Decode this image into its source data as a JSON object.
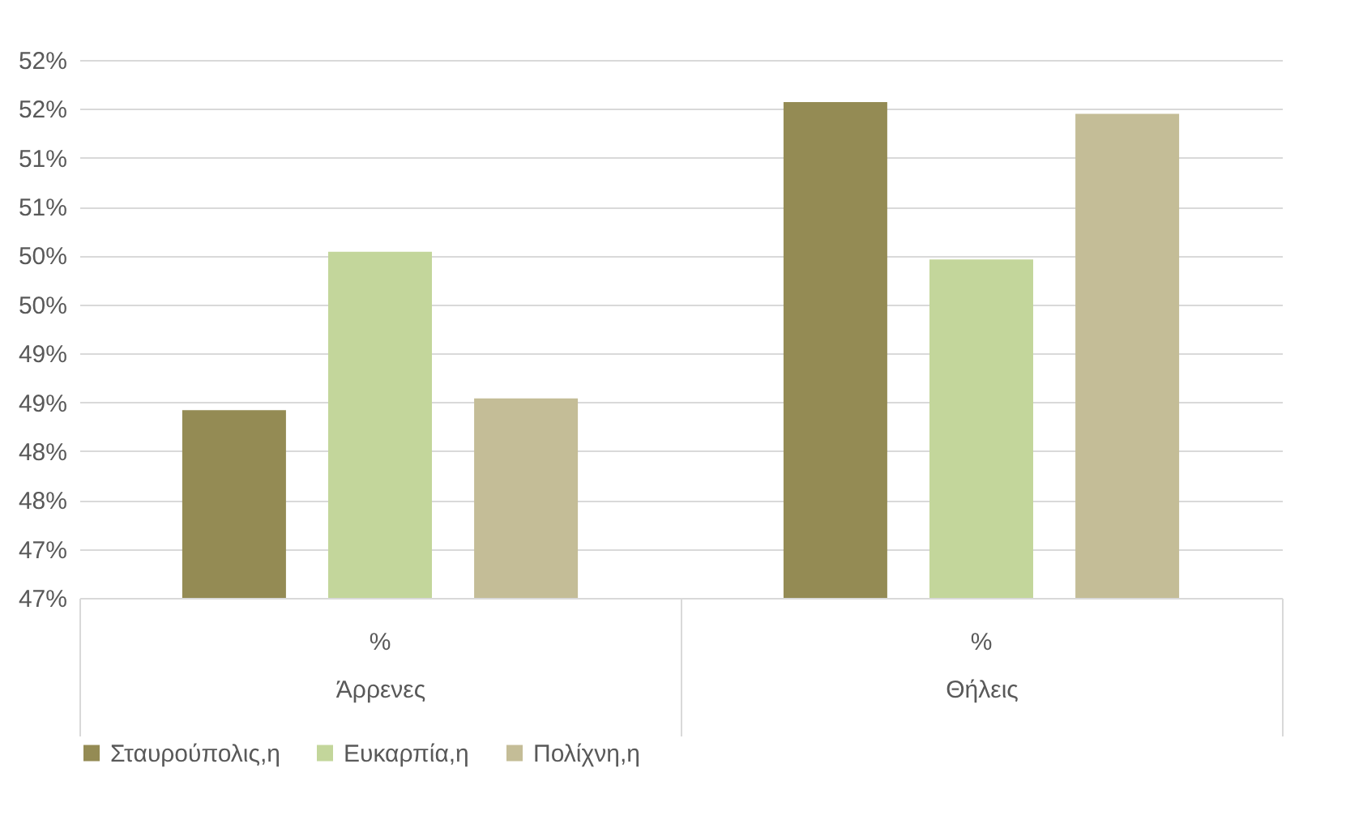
{
  "chart_data": {
    "type": "bar",
    "categories": [
      "Άρρενες",
      "Θήλεις"
    ],
    "series": [
      {
        "name": "Σταυρούπολις,η",
        "color": "#948b54",
        "values": [
          48.42,
          51.57
        ]
      },
      {
        "name": "Ευκαρπία,η",
        "color": "#c3d69b",
        "values": [
          50.04,
          49.96
        ]
      },
      {
        "name": "Πολίχνη,η",
        "color": "#c4bd97",
        "values": [
          48.54,
          51.45
        ]
      }
    ],
    "ylim": [
      46.5,
      52
    ],
    "yticks": [
      {
        "value": 46.5,
        "label": "47%"
      },
      {
        "value": 47,
        "label": "47%"
      },
      {
        "value": 47.5,
        "label": "48%"
      },
      {
        "value": 48,
        "label": "48%"
      },
      {
        "value": 48.5,
        "label": "49%"
      },
      {
        "value": 49,
        "label": "49%"
      },
      {
        "value": 49.5,
        "label": "50%"
      },
      {
        "value": 50,
        "label": "50%"
      },
      {
        "value": 50.5,
        "label": "51%"
      },
      {
        "value": 51,
        "label": "51%"
      },
      {
        "value": 51.5,
        "label": "52%"
      },
      {
        "value": 52,
        "label": "52%"
      }
    ],
    "annotations": [
      "%",
      "%"
    ],
    "grid": "y",
    "legend": "bottom"
  }
}
